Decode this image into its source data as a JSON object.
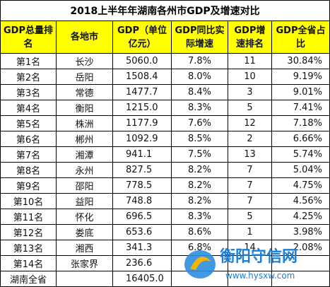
{
  "title": "2018上半年年湖南各州市GDP及增速对比",
  "table": {
    "header": [
      "GDP总量排名",
      "各地市",
      "GDP（单位亿元）",
      "GDP同比实际增速",
      "GDP增速排名",
      "GDP全省占比"
    ],
    "rows": [
      [
        "第1名",
        "长沙",
        "5060.0",
        "7.8%",
        "11",
        "30.84%"
      ],
      [
        "第2名",
        "岳阳",
        "1508.4",
        "8.0%",
        "10",
        "9.19%"
      ],
      [
        "第3名",
        "常德",
        "1477.7",
        "8.4%",
        "3",
        "9.01%"
      ],
      [
        "第4名",
        "衡阳",
        "1215.0",
        "8.3%",
        "5",
        "7.41%"
      ],
      [
        "第5名",
        "株洲",
        "1177.9",
        "7.6%",
        "12",
        "7.18%"
      ],
      [
        "第6名",
        "郴州",
        "1092.9",
        "8.5%",
        "2",
        "6.66%"
      ],
      [
        "第7名",
        "湘潭",
        "941.1",
        "7.5%",
        "13",
        "5.74%"
      ],
      [
        "第8名",
        "永州",
        "827.5",
        "8.2%",
        "7",
        "5.04%"
      ],
      [
        "第9名",
        "邵阳",
        "778.5",
        "8.2%",
        "7",
        "4.75%"
      ],
      [
        "第10名",
        "益阳",
        "748.8",
        "8.2%",
        "7",
        "4.56%"
      ],
      [
        "第11名",
        "怀化",
        "696.5",
        "8.3%",
        "5",
        "4.25%"
      ],
      [
        "第12名",
        "娄底",
        "653.6",
        "8.6%",
        "1",
        "3.98%"
      ],
      [
        "第13名",
        "湘西",
        "341.3",
        "6.8%",
        "14",
        "2.08%"
      ],
      [
        "第14名",
        "张家界",
        "236.6"
      ],
      [
        "湖南全省",
        "",
        "16405.0"
      ]
    ]
  },
  "watermark": {
    "name": "衡阳守信网",
    "url": "www.hysxw.com"
  }
}
